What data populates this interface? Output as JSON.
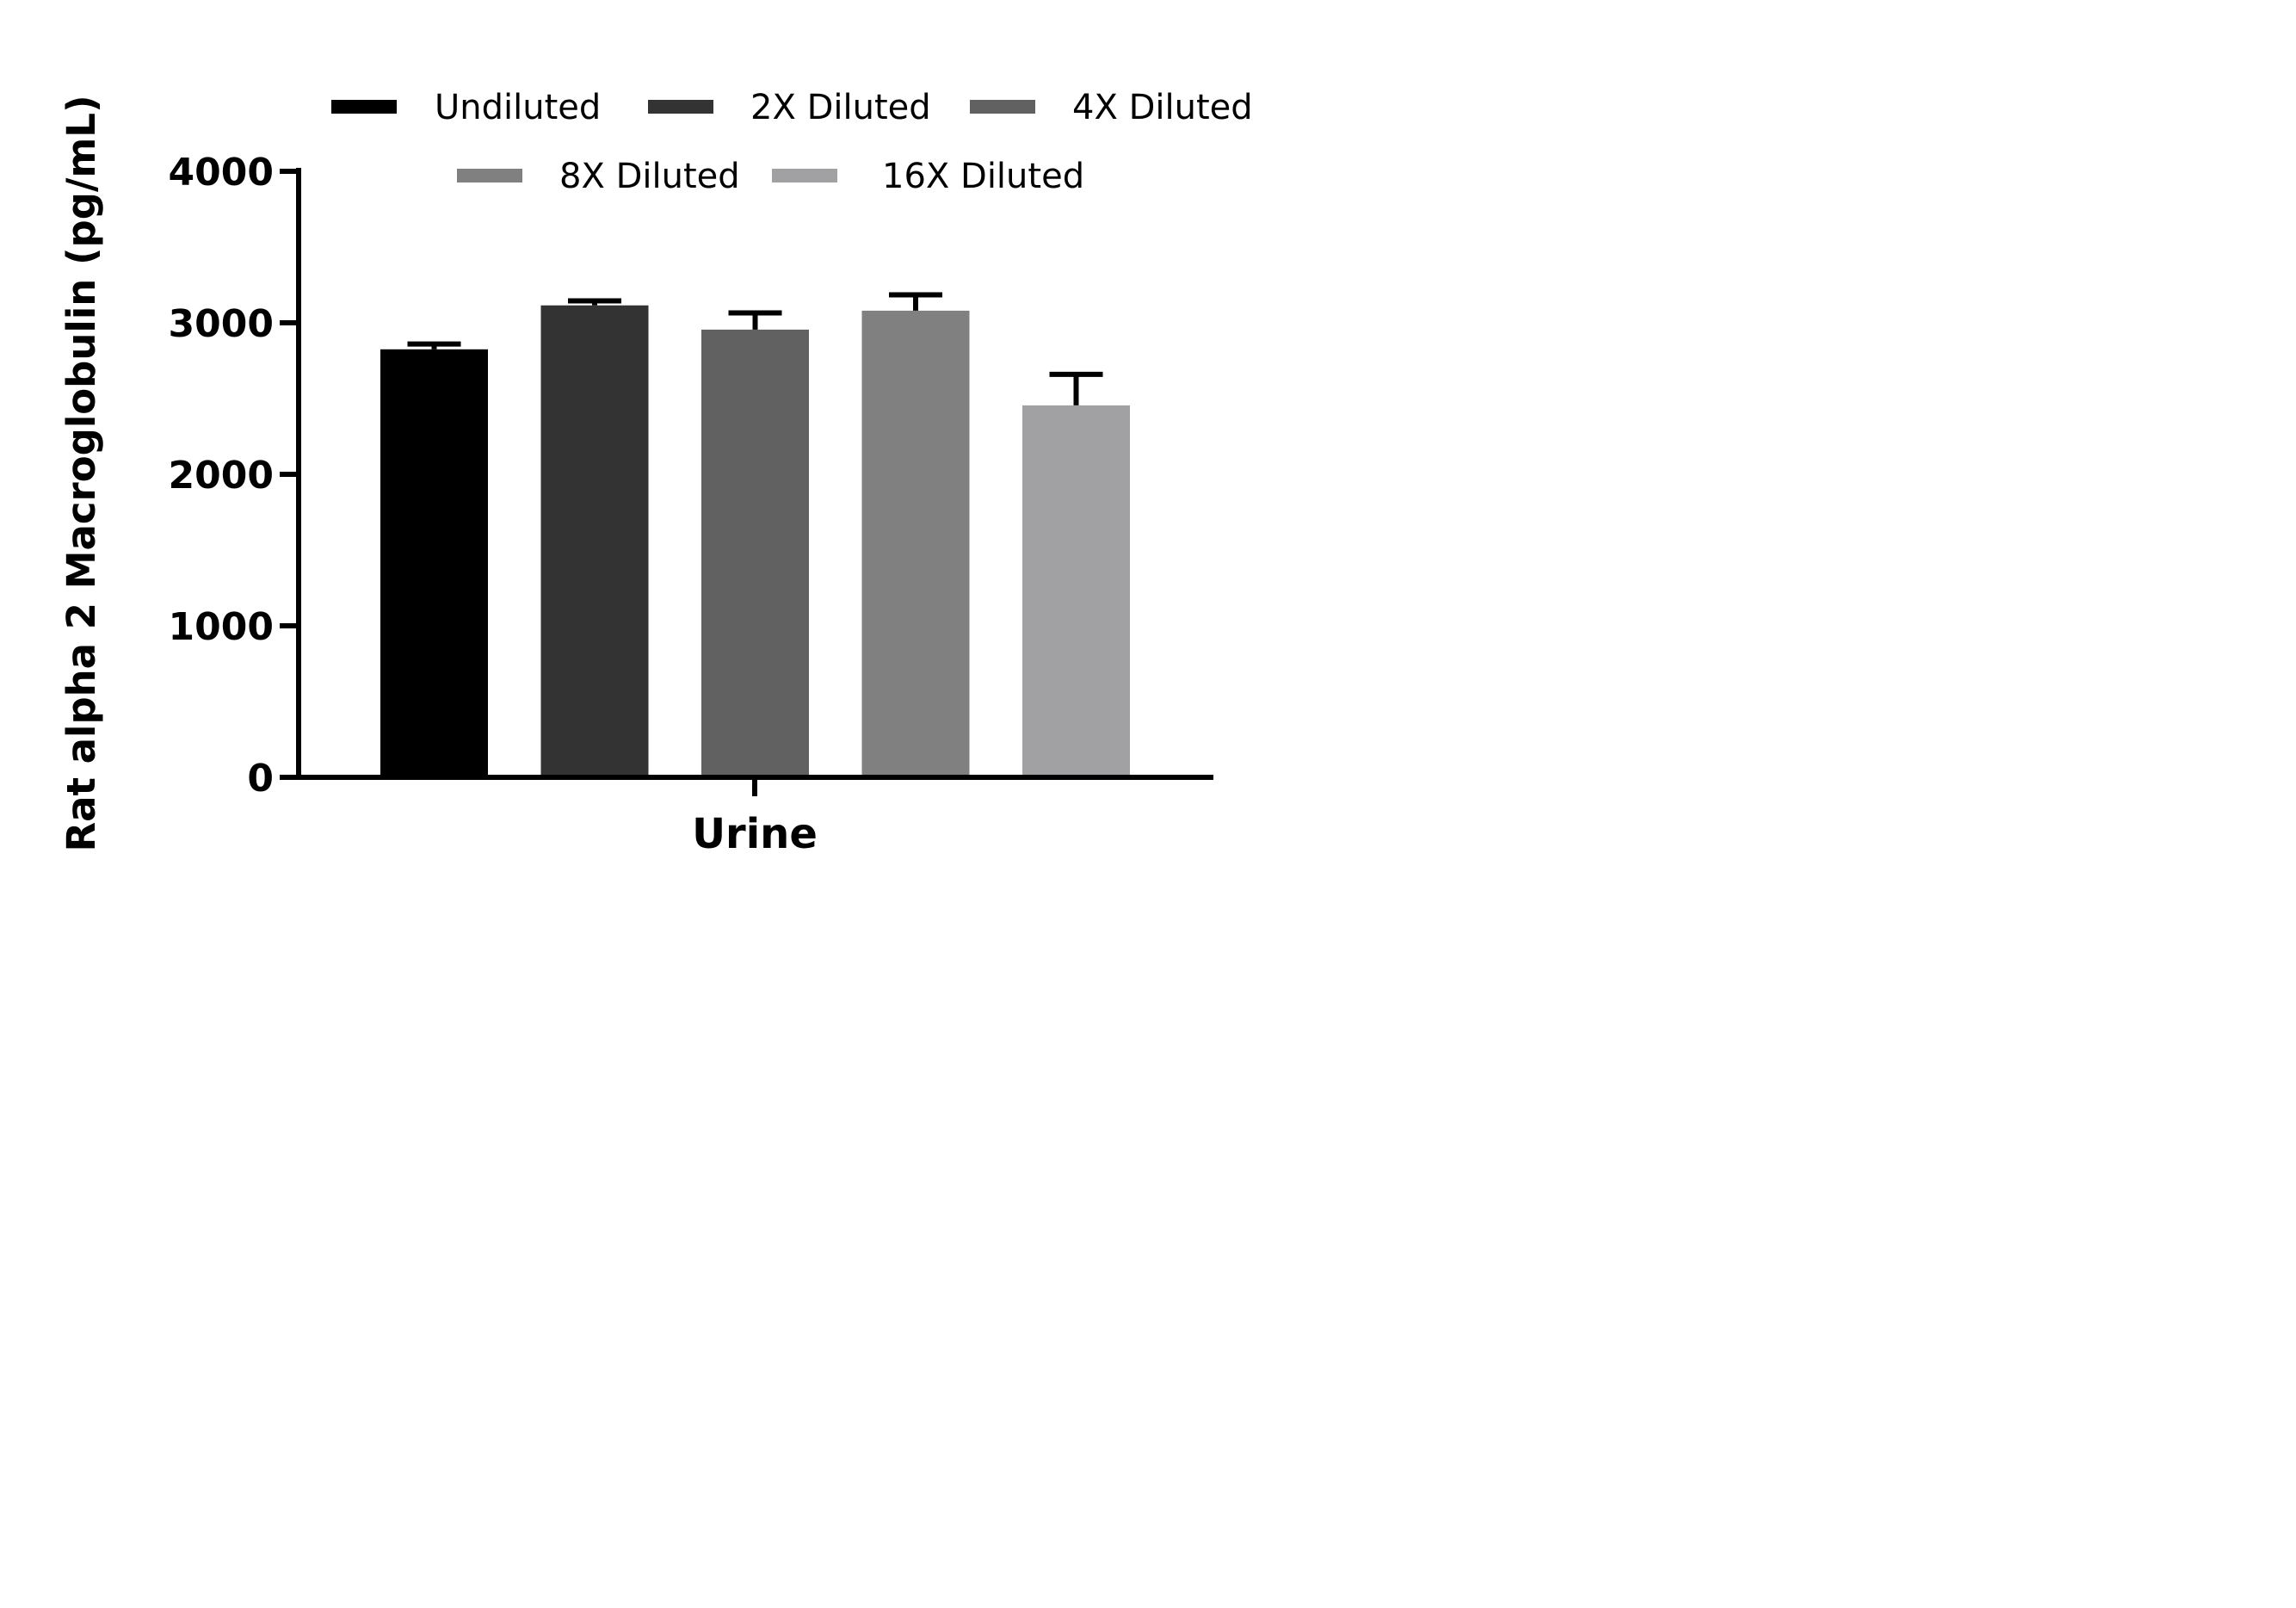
{
  "chart_data": {
    "type": "bar",
    "title": "",
    "xlabel": "Urine",
    "ylabel": "Rat alpha 2 Macroglobulin (pg/mL)",
    "ylim": [
      0,
      4000
    ],
    "yticks": [
      "0",
      "1000",
      "2000",
      "3000",
      "4000"
    ],
    "categories": [
      "Urine"
    ],
    "grid": false,
    "legend_position": "top",
    "series": [
      {
        "name": "Undiluted",
        "values": [
          2825
        ],
        "error": [
          35
        ],
        "color": "#000000"
      },
      {
        "name": "2X Diluted",
        "values": [
          3115
        ],
        "error": [
          30
        ],
        "color": "#333333"
      },
      {
        "name": "4X Diluted",
        "values": [
          2955
        ],
        "error": [
          110
        ],
        "color": "#616161"
      },
      {
        "name": "8X Diluted",
        "values": [
          3080
        ],
        "error": [
          105
        ],
        "color": "#808080"
      },
      {
        "name": "16X Diluted",
        "values": [
          2455
        ],
        "error": [
          205
        ],
        "color": "#a1a1a4"
      }
    ]
  }
}
